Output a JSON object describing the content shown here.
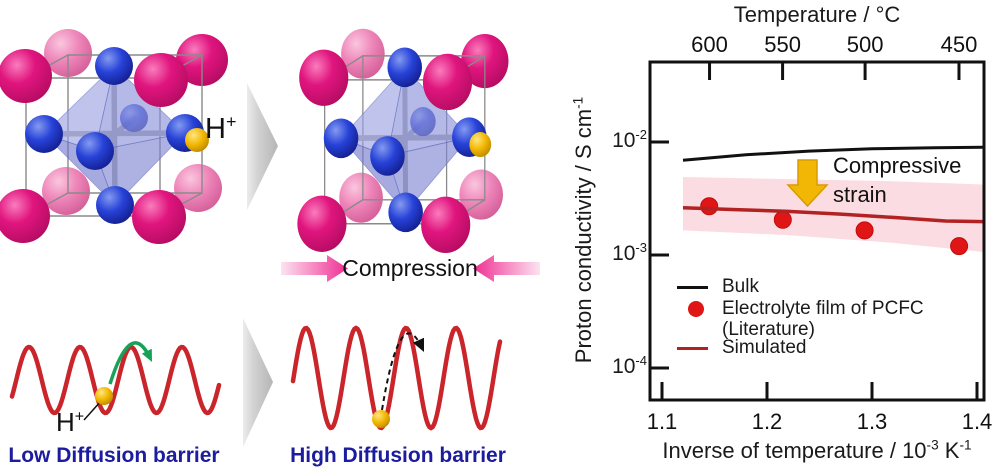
{
  "figure": {
    "crystal_section": {
      "h_plus": {
        "base": "H",
        "sup": "+"
      },
      "compression_label": "Compression"
    },
    "barrier_section": {
      "h_plus": {
        "base": "H",
        "sup": "+"
      },
      "low_label": "Low Diffusion barrier",
      "high_label": "High Diffusion barrier"
    },
    "colors": {
      "sphere_magenta": "#e0157e",
      "sphere_pink_back": "#ee86ba",
      "sphere_blue": "#2742d8",
      "sphere_yellow": "#f2b600",
      "octahedron": "#7b82d4",
      "wave_red": "#c9252b",
      "hop_arrow_green": "#17a258",
      "barrier_text_navy": "#1c1c9e",
      "compression_pink": "#f02d92",
      "panel_arrow_gray": "#bdbdbd"
    }
  },
  "chart_data": {
    "type": "line",
    "top_axis": {
      "label": "Temperature / °C",
      "tick_values": [
        600,
        550,
        500,
        450
      ]
    },
    "x_axis": {
      "label_main": "Inverse of temperature / 10",
      "label_sup1": "-3",
      "label_mid": " K",
      "label_sup2": "-1",
      "tick_values": [
        1.1,
        1.2,
        1.3,
        1.4
      ],
      "lim": [
        1.089,
        1.407
      ]
    },
    "y_axis": {
      "label_main": "Proton conductivity / S cm",
      "label_sup": "-1",
      "scale": "log",
      "lim": [
        5.2e-05,
        0.051
      ],
      "ticks": [
        {
          "base": "10",
          "sup": "-2",
          "value": 0.01
        },
        {
          "base": "10",
          "sup": "-3",
          "value": 0.001
        },
        {
          "base": "10",
          "sup": "-4",
          "value": 0.0001
        }
      ]
    },
    "series": [
      {
        "name": "Bulk",
        "kind": "line",
        "color": "#111111",
        "points": [
          [
            1.12,
            0.0069
          ],
          [
            1.18,
            0.0077
          ],
          [
            1.24,
            0.0083
          ],
          [
            1.3,
            0.0087
          ],
          [
            1.36,
            0.0089
          ],
          [
            1.407,
            0.009
          ]
        ]
      },
      {
        "name": "Electrolyte film of PCFC (Literature)",
        "kind": "scatter",
        "color": "#e01616",
        "points": [
          [
            1.145,
            0.0027
          ],
          [
            1.215,
            0.00205
          ],
          [
            1.293,
            0.00165
          ],
          [
            1.383,
            0.0012
          ]
        ]
      },
      {
        "name": "Simulated",
        "kind": "line",
        "color": "#b22222",
        "points": [
          [
            1.12,
            0.00262
          ],
          [
            1.17,
            0.00252
          ],
          [
            1.22,
            0.00243
          ],
          [
            1.27,
            0.0023
          ],
          [
            1.32,
            0.00215
          ],
          [
            1.37,
            0.002
          ],
          [
            1.407,
            0.00197
          ]
        ],
        "band_color": "#fbdce2",
        "band_upper": [
          [
            1.12,
            0.0049
          ],
          [
            1.22,
            0.0047
          ],
          [
            1.32,
            0.0045
          ],
          [
            1.407,
            0.0042
          ]
        ],
        "band_lower": [
          [
            1.12,
            0.00165
          ],
          [
            1.22,
            0.0015
          ],
          [
            1.32,
            0.00128
          ],
          [
            1.407,
            0.00106
          ]
        ]
      }
    ],
    "annotation": {
      "line1": "Compressive",
      "line2": "strain",
      "arrow_color": "#f2b705"
    },
    "legend": {
      "entries": [
        {
          "swatch": "line",
          "color": "#111111",
          "label": "Bulk"
        },
        {
          "swatch": "circle",
          "color": "#e01616",
          "label": "Electrolyte film of PCFC",
          "label2": "(Literature)"
        },
        {
          "swatch": "line",
          "color": "#b22222",
          "label": "Simulated"
        }
      ]
    }
  }
}
